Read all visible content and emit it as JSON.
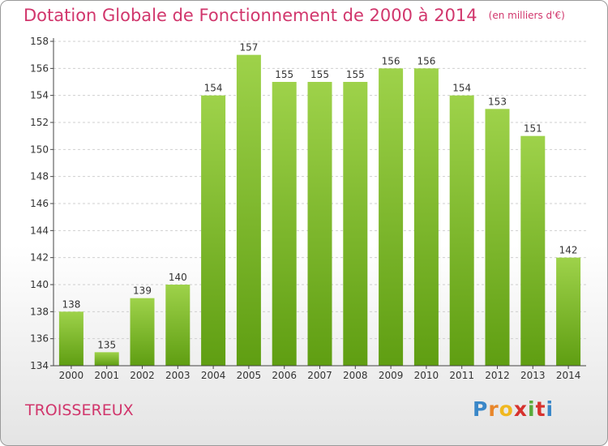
{
  "title": "Dotation Globale de Fonctionnement de 2000 à 2014",
  "unit": "(en milliers d'€)",
  "commune": "TROISSEREUX",
  "logo": {
    "letters": [
      "P",
      "r",
      "o",
      "x",
      "i",
      "t",
      "i"
    ],
    "colors": [
      "#3a87c8",
      "#e8862a",
      "#f0b820",
      "#d6322e",
      "#5aaa3a",
      "#d6322e",
      "#3a87c8"
    ]
  },
  "chart_data": {
    "type": "bar",
    "title": "Dotation Globale de Fonctionnement de 2000 à 2014",
    "xlabel": "",
    "ylabel": "",
    "categories": [
      "2000",
      "2001",
      "2002",
      "2003",
      "2004",
      "2005",
      "2006",
      "2007",
      "2008",
      "2009",
      "2010",
      "2011",
      "2012",
      "2013",
      "2014"
    ],
    "values": [
      138,
      135,
      139,
      140,
      154,
      157,
      155,
      155,
      155,
      156,
      156,
      154,
      153,
      151,
      142
    ],
    "ylim": [
      134,
      158
    ],
    "yticks": [
      134,
      136,
      138,
      140,
      142,
      144,
      146,
      148,
      150,
      152,
      154,
      156,
      158
    ],
    "grid": true,
    "colors": {
      "bar_light": "#9ed24a",
      "bar_dark": "#5f9e12",
      "grid": "#cfcfcf",
      "axis": "#444444",
      "text": "#333333"
    }
  }
}
